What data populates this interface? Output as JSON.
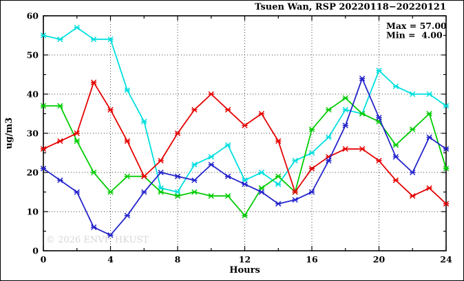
{
  "page": {
    "background": "#ffffff",
    "border_color": "#000000"
  },
  "chart_data": {
    "type": "line",
    "title": "Tsuen Wan, RSP 20220118−20220121",
    "annotation": {
      "lines": [
        "Max = 57.00",
        "Min =  4.00"
      ]
    },
    "watermark": "© 2026 ENVF, HKUST",
    "watermark_color": "#d6d6d6",
    "xlabel": "Hours",
    "ylabel": "ug/m3",
    "xlim": [
      0,
      24
    ],
    "ylim": [
      0,
      60
    ],
    "xticks": [
      0,
      4,
      8,
      12,
      16,
      20,
      24
    ],
    "xticks_minor": [
      2,
      6,
      10,
      14,
      18,
      22
    ],
    "yticks": [
      0,
      10,
      20,
      30,
      40,
      50,
      60
    ],
    "yticks_minor": [
      5,
      15,
      25,
      35,
      45,
      55
    ],
    "grid": "dotted black at major ticks, mirrored inward ticks on all four borders",
    "legend": "none",
    "x": [
      0,
      1,
      2,
      3,
      4,
      5,
      6,
      7,
      8,
      9,
      10,
      11,
      12,
      13,
      14,
      15,
      16,
      17,
      18,
      19,
      20,
      21,
      22,
      23,
      24
    ],
    "series": [
      {
        "name": "series-cyan",
        "color": "#00dfdf",
        "values": [
          55,
          54,
          57,
          54,
          54,
          41,
          33,
          16,
          15,
          22,
          24,
          27,
          18,
          20,
          17,
          23,
          25,
          29,
          36,
          35,
          46,
          42,
          40,
          40,
          37
        ]
      },
      {
        "name": "series-green",
        "color": "#00cc00",
        "values": [
          37,
          37,
          28,
          20,
          15,
          19,
          19,
          15,
          14,
          15,
          14,
          14,
          9,
          16,
          19,
          15,
          31,
          36,
          39,
          35,
          33,
          27,
          31,
          35,
          21
        ]
      },
      {
        "name": "series-red",
        "color": "#e60000",
        "values": [
          26,
          28,
          30,
          43,
          36,
          28,
          19,
          23,
          30,
          36,
          40,
          36,
          32,
          35,
          28,
          15,
          21,
          24,
          26,
          26,
          23,
          18,
          14,
          16,
          12
        ]
      },
      {
        "name": "series-blue",
        "color": "#2323cc",
        "values": [
          21,
          18,
          15,
          6,
          4,
          9,
          15,
          20,
          19,
          18,
          22,
          19,
          17,
          15,
          12,
          13,
          15,
          23,
          32,
          44,
          34,
          24,
          20,
          29,
          26
        ]
      }
    ]
  }
}
